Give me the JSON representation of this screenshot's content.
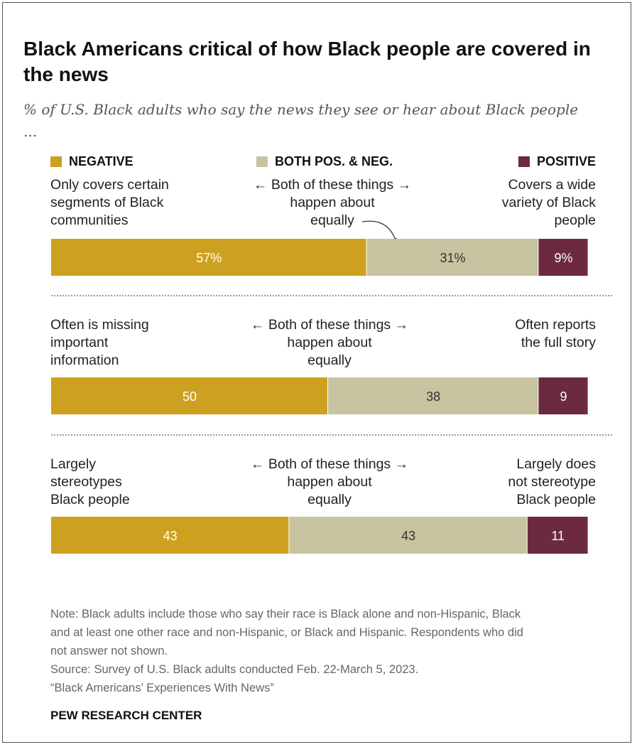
{
  "title": "Black Americans critical of how Black people are covered in the news",
  "subtitle": "% of U.S. Black adults who say the news they see or hear about Black people ...",
  "legend": [
    {
      "label": "NEGATIVE",
      "color": "#CDA11F"
    },
    {
      "label": "BOTH POS. & NEG.",
      "color": "#C8C3A0"
    },
    {
      "label": "POSITIVE",
      "color": "#6B2A3F"
    }
  ],
  "colors": {
    "negative": "#CDA11F",
    "both": "#C8C3A0",
    "positive": "#6B2A3F",
    "label_on_dark": "#FFFFFF",
    "label_on_light": "#333333"
  },
  "rows": [
    {
      "left_label": [
        "Only covers certain",
        "segments of Black",
        "communities"
      ],
      "center_label": [
        "Both of these things",
        "happen about",
        "equally"
      ],
      "right_label": [
        "Covers a wide",
        "variety of Black",
        "people"
      ],
      "value_labels": [
        "57%",
        "31%",
        "9%"
      ]
    },
    {
      "left_label": [
        "Often is missing",
        "important",
        "information"
      ],
      "center_label": [
        "Both of these things",
        "happen about",
        "equally"
      ],
      "right_label": [
        "Often reports",
        "the full story"
      ],
      "value_labels": [
        "50",
        "38",
        "9"
      ]
    },
    {
      "left_label": [
        "Largely",
        "stereotypes",
        "Black people"
      ],
      "center_label": [
        "Both of these things",
        "happen about",
        "equally"
      ],
      "right_label": [
        "Largely does",
        "not stereotype",
        "Black people"
      ],
      "value_labels": [
        "43",
        "43",
        "11"
      ]
    }
  ],
  "arrows": {
    "left": "←",
    "right": "→"
  },
  "note_lines": [
    "Note: Black adults include those who say their race is Black alone and non-Hispanic, Black",
    "and at least one other race and non-Hispanic, or Black and Hispanic. Respondents who did",
    "not answer not shown.",
    "Source: Survey of U.S. Black adults conducted Feb. 22-March 5, 2023.",
    "“Black Americans’ Experiences With News”"
  ],
  "brand": "PEW RESEARCH CENTER",
  "chart_data": {
    "type": "bar",
    "orientation": "horizontal",
    "stacked": true,
    "title": "Black Americans critical of how Black people are covered in the news",
    "subtitle": "% of U.S. Black adults who say the news they see or hear about Black people ...",
    "categories": [
      "Only covers certain segments of Black communities / Covers a wide variety of Black people",
      "Often is missing important information / Often reports the full story",
      "Largely stereotypes Black people / Largely does not stereotype Black people"
    ],
    "series": [
      {
        "name": "NEGATIVE",
        "values": [
          57,
          50,
          43
        ]
      },
      {
        "name": "BOTH POS. & NEG.",
        "values": [
          31,
          38,
          43
        ]
      },
      {
        "name": "POSITIVE",
        "values": [
          9,
          9,
          11
        ]
      }
    ],
    "xlim": [
      0,
      97
    ],
    "xlabel": "",
    "ylabel": "",
    "grid": false,
    "legend": "top",
    "annotations": [
      "Both of these things happen about equally (pointer to first row middle segment)"
    ]
  }
}
